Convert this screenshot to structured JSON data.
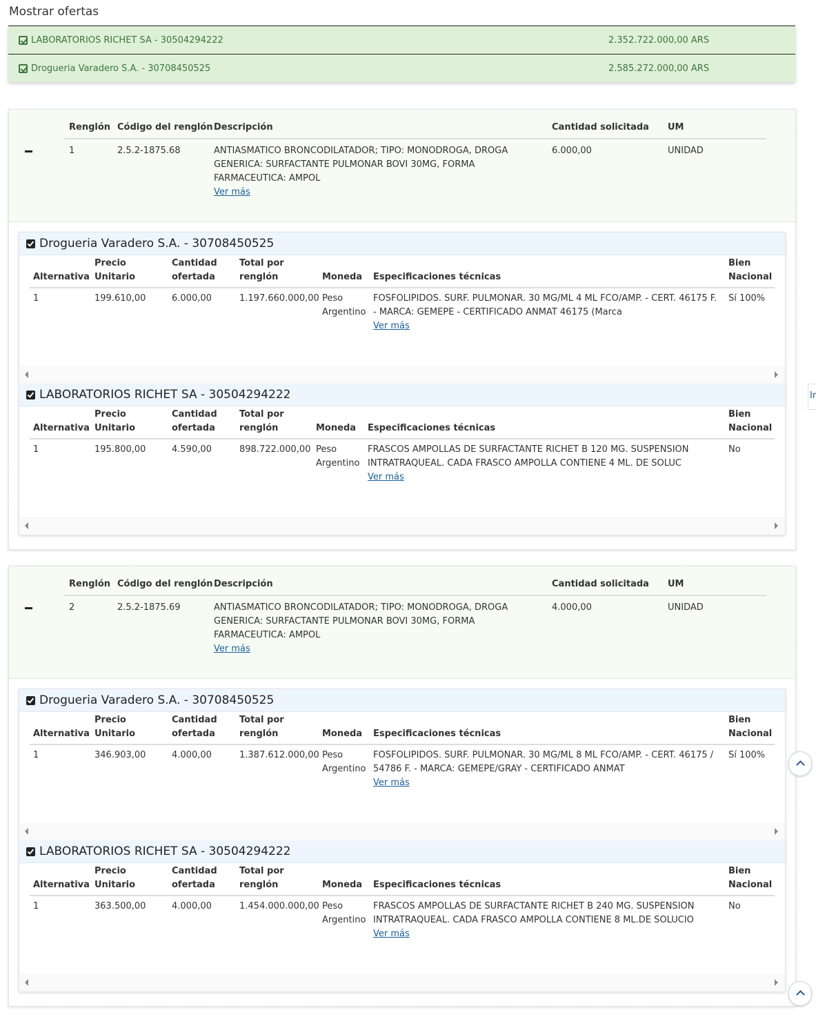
{
  "title": "Mostrar ofertas",
  "summary": [
    {
      "supplier": "LABORATORIOS RICHET SA - 30504294222",
      "amount": "2.352.722.000,00 ARS"
    },
    {
      "supplier": "Drogueria Varadero S.A. - 30708450525",
      "amount": "2.585.272.000,00 ARS"
    }
  ],
  "item_headers": {
    "renglon": "Renglón",
    "codigo": "Código del renglón",
    "descripcion": "Descripción",
    "cantidad": "Cantidad solicitada",
    "um": "UM"
  },
  "offer_headers": {
    "alternativa": "Alternativa",
    "precio": "Precio Unitario",
    "cantidad": "Cantidad ofertada",
    "total": "Total por renglón",
    "moneda": "Moneda",
    "especificaciones": "Especificaciones técnicas",
    "bien_nacional": "Bien Nacional"
  },
  "ver_mas": "Ver más",
  "ir_label": "Ir",
  "items": [
    {
      "renglon": "1",
      "codigo": "2.5.2-1875.68",
      "descripcion": "ANTIASMATICO BRONCODILATADOR; TIPO: MONODROGA, DROGA GENERICA: SURFACTANTE PULMONAR BOVI 30MG, FORMA FARMACEUTICA: AMPOL",
      "cantidad": "6.000,00",
      "um": "UNIDAD",
      "offers": [
        {
          "supplier": "Drogueria Varadero S.A. - 30708450525",
          "alternativa": "1",
          "precio": "199.610,00",
          "cantidad": "6.000,00",
          "total": "1.197.660.000,00",
          "moneda": "Peso Argentino",
          "especificaciones": "FOSFOLIPIDOS. SURF. PULMONAR. 30 MG/ML 4 ML FCO/AMP. - CERT. 46175 F. - MARCA: GEMEPE - CERTIFICADO ANMAT 46175 (Marca",
          "bien_nacional": "Sí 100%"
        },
        {
          "supplier": "LABORATORIOS RICHET SA - 30504294222",
          "alternativa": "1",
          "precio": "195.800,00",
          "cantidad": "4.590,00",
          "total": "898.722.000,00",
          "moneda": "Peso Argentino",
          "especificaciones": "FRASCOS AMPOLLAS DE SURFACTANTE RICHET B 120 MG. SUSPENSION INTRATRAQUEAL. CADA FRASCO AMPOLLA CONTIENE 4 ML. DE SOLUC",
          "bien_nacional": "No"
        }
      ]
    },
    {
      "renglon": "2",
      "codigo": "2.5.2-1875.69",
      "descripcion": "ANTIASMATICO BRONCODILATADOR; TIPO: MONODROGA, DROGA GENERICA: SURFACTANTE PULMONAR BOVI 30MG, FORMA FARMACEUTICA: AMPOL",
      "cantidad": "4.000,00",
      "um": "UNIDAD",
      "offers": [
        {
          "supplier": "Drogueria Varadero S.A. - 30708450525",
          "alternativa": "1",
          "precio": "346.903,00",
          "cantidad": "4.000,00",
          "total": "1.387.612.000,00",
          "moneda": "Peso Argentino",
          "especificaciones": "FOSFOLIPIDOS. SURF. PULMONAR. 30 MG/ML 8 ML FCO/AMP. - CERT. 46175 / 54786 F. - MARCA: GEMEPE/GRAY - CERTIFICADO ANMAT",
          "bien_nacional": "Sí 100%"
        },
        {
          "supplier": "LABORATORIOS RICHET SA - 30504294222",
          "alternativa": "1",
          "precio": "363.500,00",
          "cantidad": "4.000,00",
          "total": "1.454.000.000,00",
          "moneda": "Peso Argentino",
          "especificaciones": "FRASCOS AMPOLLAS DE SURFACTANTE RICHET B 240 MG. SUSPENSION INTRATRAQUEAL. CADA FRASCO AMPOLLA CONTIENE 8 ML.DE SOLUCIO",
          "bien_nacional": "No"
        }
      ]
    }
  ]
}
